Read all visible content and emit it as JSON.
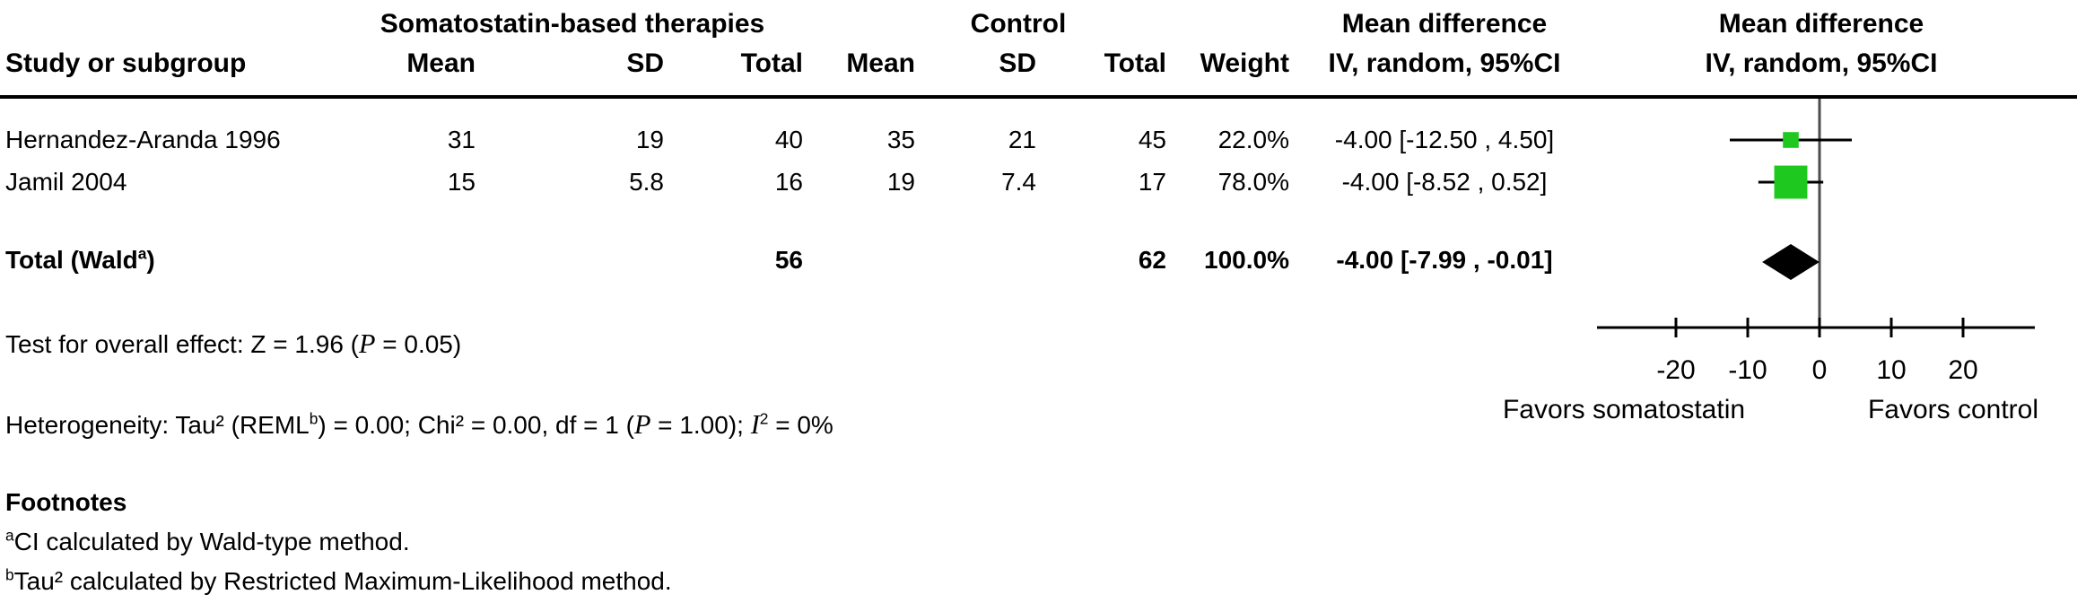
{
  "header": {
    "group1": "Somatostatin-based therapies",
    "group2": "Control",
    "mean_diff_text": "Mean difference",
    "mean_diff_plot": "Mean difference",
    "iv_random_text": "IV, random, 95%CI",
    "iv_random_plot": "IV, random, 95%CI",
    "study": "Study or subgroup",
    "mean1": "Mean",
    "sd1": "SD",
    "total1": "Total",
    "mean2": "Mean",
    "sd2": "SD",
    "total2": "Total",
    "weight": "Weight"
  },
  "rows": [
    {
      "study": "Hernandez-Aranda 1996",
      "mean1": "31",
      "sd1": "19",
      "total1": "40",
      "mean2": "35",
      "sd2": "21",
      "total2": "45",
      "weight": "22.0%",
      "ci": "-4.00 [-12.50 , 4.50]"
    },
    {
      "study": "Jamil 2004",
      "mean1": "15",
      "sd1": "5.8",
      "total1": "16",
      "mean2": "19",
      "sd2": "7.4",
      "total2": "17",
      "weight": "78.0%",
      "ci": "-4.00 [-8.52 , 0.52]"
    }
  ],
  "total_row": {
    "label_main": "Total (Wald",
    "label_sup": "a",
    "label_close": ")",
    "total1": "56",
    "total2": "62",
    "weight": "100.0%",
    "ci": "-4.00 [-7.99 , -0.01]"
  },
  "effect_test": {
    "t1": "Test for overall effect: Z = 1.96 (",
    "p": "P",
    "t2": " = 0.05)"
  },
  "heterogeneity": {
    "t1": "Heterogeneity: Tau² (REML",
    "sup_b": "b",
    "t2": ") = 0.00; Chi² = 0.00, df = 1 (",
    "p": "P",
    "t3": " = 1.00); ",
    "i": "I",
    "sup_2": "2",
    "t4": " = 0%"
  },
  "footnotes": {
    "heading": "Footnotes",
    "a_sup": "a",
    "a_text": "CI calculated by Wald-type method.",
    "b_sup": "b",
    "b_text": "Tau² calculated by Restricted Maximum-Likelihood method."
  },
  "chart_data": {
    "type": "scatter",
    "subtype": "forest-plot",
    "title": "Mean difference IV, random, 95%CI",
    "x_axis": {
      "ticks": [
        -20,
        -10,
        0,
        10,
        20
      ],
      "range": [
        -31,
        30
      ],
      "zero_line": 0
    },
    "studies": [
      {
        "name": "Hernandez-Aranda 1996",
        "estimate": -4.0,
        "ci_low": -12.5,
        "ci_high": 4.5,
        "weight_pct": 22.0
      },
      {
        "name": "Jamil 2004",
        "estimate": -4.0,
        "ci_low": -8.52,
        "ci_high": 0.52,
        "weight_pct": 78.0
      }
    ],
    "total": {
      "label": "Total (Wald a)",
      "estimate": -4.0,
      "ci_low": -7.99,
      "ci_high": -0.01,
      "weight_pct": 100.0
    },
    "favors_left": "Favors somatostatin",
    "favors_right": "Favors control",
    "colors": {
      "marker": "#1ec81e",
      "diamond": "#000000",
      "axis": "#000000",
      "zero_line": "#4d4d4d",
      "ci_line": "#000000"
    }
  }
}
